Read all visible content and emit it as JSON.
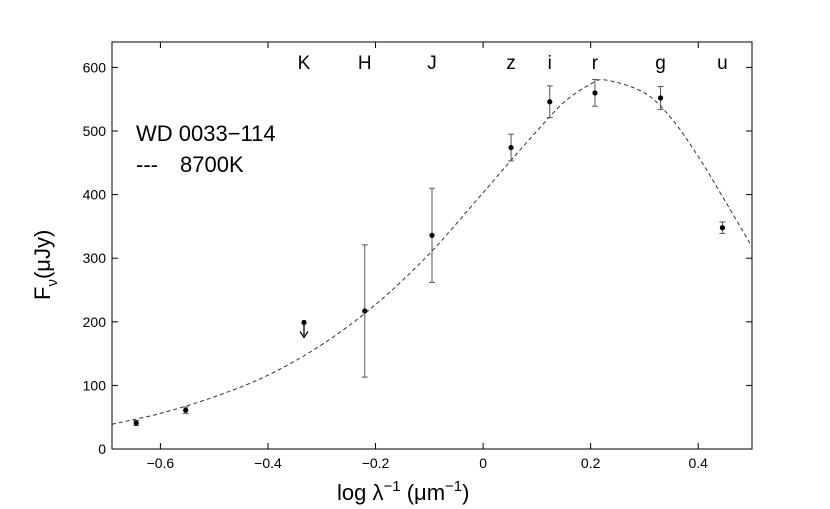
{
  "chart_data": {
    "type": "scatter",
    "xlabel": {
      "main": "log λ",
      "sup1": "−1",
      "units_open": " (μm",
      "sup2": "−1",
      "units_close": ")"
    },
    "ylabel": {
      "main": "F",
      "sub": "ν",
      "units": "(μJy)"
    },
    "xlim": [
      -0.69,
      0.5
    ],
    "ylim": [
      0,
      640
    ],
    "x_ticks": [
      {
        "value": -0.6,
        "label": "−0.6"
      },
      {
        "value": -0.4,
        "label": "−0.4"
      },
      {
        "value": -0.2,
        "label": "−0.2"
      },
      {
        "value": 0,
        "label": "0"
      },
      {
        "value": 0.2,
        "label": "0.2"
      },
      {
        "value": 0.4,
        "label": "0.4"
      }
    ],
    "y_ticks": [
      {
        "value": 0,
        "label": "0"
      },
      {
        "value": 100,
        "label": "100"
      },
      {
        "value": 200,
        "label": "200"
      },
      {
        "value": 300,
        "label": "300"
      },
      {
        "value": 400,
        "label": "400"
      },
      {
        "value": 500,
        "label": "500"
      },
      {
        "value": 600,
        "label": "600"
      }
    ],
    "legend": {
      "placement": "top-left",
      "object": "WD 0033−114",
      "line_symbol": "---",
      "model": "8700K"
    },
    "band_labels": [
      {
        "label": "K",
        "x": -0.333
      },
      {
        "label": "H",
        "x": -0.22
      },
      {
        "label": "J",
        "x": -0.095
      },
      {
        "label": "z",
        "x": 0.052
      },
      {
        "label": "i",
        "x": 0.124
      },
      {
        "label": "r",
        "x": 0.208
      },
      {
        "label": "g",
        "x": 0.33
      },
      {
        "label": "u",
        "x": 0.445
      }
    ],
    "points": [
      {
        "x": -0.645,
        "y": 41,
        "err": 4
      },
      {
        "x": -0.553,
        "y": 61,
        "err": 5
      },
      {
        "x": -0.333,
        "y": 199,
        "err": 0,
        "upper_limit": true
      },
      {
        "x": -0.22,
        "y": 217,
        "err": 104
      },
      {
        "x": -0.095,
        "y": 336,
        "err": 74
      },
      {
        "x": 0.052,
        "y": 474,
        "err": 21
      },
      {
        "x": 0.124,
        "y": 546,
        "err": 25
      },
      {
        "x": 0.208,
        "y": 560,
        "err": 21
      },
      {
        "x": 0.33,
        "y": 552,
        "err": 18
      },
      {
        "x": 0.445,
        "y": 348,
        "err": 9
      }
    ],
    "model_curve": {
      "name": "8700K",
      "style": "dashed",
      "x": [
        -0.69,
        -0.6,
        -0.5,
        -0.4,
        -0.3,
        -0.2,
        -0.1,
        0,
        0.05,
        0.1,
        0.15,
        0.2,
        0.23,
        0.3,
        0.35,
        0.4,
        0.45,
        0.5
      ],
      "y": [
        39,
        56,
        82,
        116,
        164,
        227,
        307,
        403,
        452,
        500,
        545,
        574,
        580,
        560,
        520,
        460,
        390,
        318
      ]
    },
    "grid": false,
    "colors": {
      "axis": "#000000",
      "points": "#000000",
      "errorbars": "#555555",
      "model": "#333333"
    }
  }
}
